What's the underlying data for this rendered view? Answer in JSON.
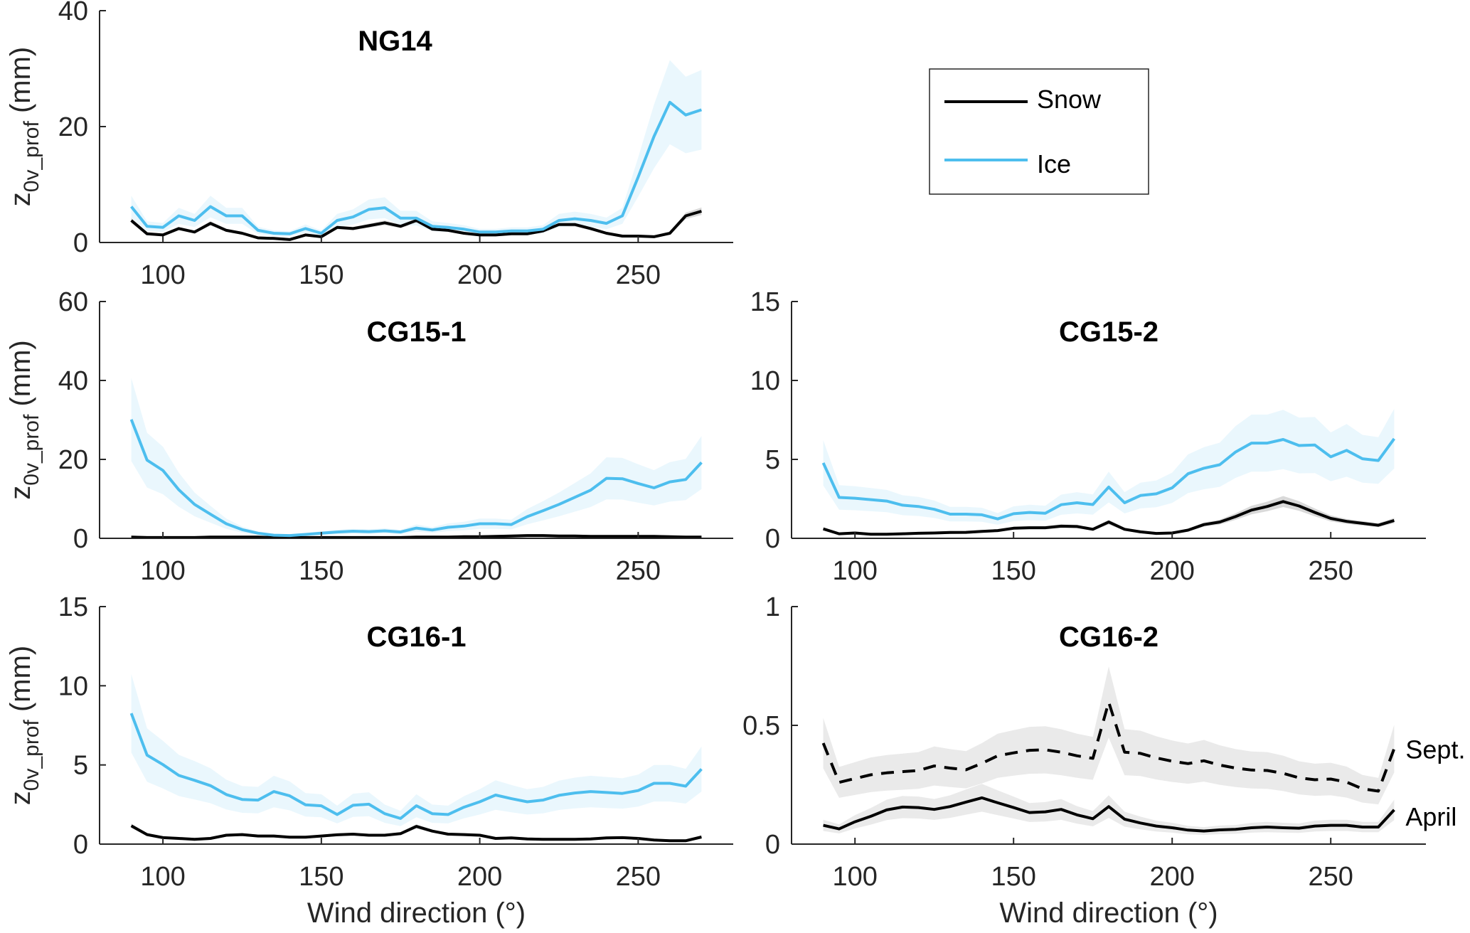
{
  "chart_data": [
    {
      "type": "line",
      "title": "NG14",
      "xlabel": "",
      "ylabel": "z0v_prof (mm)",
      "ylabel_main": "z",
      "ylabel_sub": "0v_prof",
      "ylabel_unit": " (mm)",
      "xlim": [
        80,
        280
      ],
      "ylim": [
        0,
        40
      ],
      "xticks": [
        100,
        150,
        200,
        250
      ],
      "yticks": [
        0,
        20,
        40
      ],
      "grid": false,
      "x": [
        90,
        95,
        100,
        105,
        110,
        115,
        120,
        125,
        130,
        135,
        140,
        145,
        150,
        155,
        160,
        165,
        170,
        175,
        180,
        185,
        190,
        195,
        200,
        205,
        210,
        215,
        220,
        225,
        230,
        235,
        240,
        245,
        250,
        255,
        260,
        265,
        270
      ],
      "series": [
        {
          "name": "Snow",
          "color": "#000000",
          "band_color": "#cccccc",
          "values": [
            3.8,
            1.5,
            1.3,
            2.4,
            1.8,
            3.3,
            2.1,
            1.6,
            0.8,
            0.7,
            0.5,
            1.3,
            1.0,
            2.6,
            2.4,
            2.9,
            3.4,
            2.8,
            3.8,
            2.3,
            2.1,
            1.6,
            1.3,
            1.3,
            1.5,
            1.5,
            2.0,
            3.1,
            3.1,
            2.4,
            1.6,
            1.1,
            1.1,
            1.0,
            1.6,
            4.6,
            5.4
          ],
          "band_rel": 0.12
        },
        {
          "name": "Ice",
          "color": "#4DBEEE",
          "band_color": "#e3f4fc",
          "values": [
            6.2,
            2.8,
            2.6,
            4.6,
            3.8,
            6.2,
            4.6,
            4.6,
            2.1,
            1.6,
            1.5,
            2.4,
            1.6,
            3.8,
            4.4,
            5.7,
            6.0,
            4.2,
            4.2,
            2.8,
            2.6,
            2.3,
            1.8,
            1.8,
            2.0,
            2.0,
            2.3,
            3.8,
            4.1,
            3.8,
            3.3,
            4.6,
            11.3,
            18.3,
            24.2,
            22.0,
            22.9
          ],
          "band_rel": 0.3
        }
      ]
    },
    {
      "type": "line",
      "title": "CG15-1",
      "xlabel": "",
      "ylabel": "z0v_prof (mm)",
      "ylabel_main": "z",
      "ylabel_sub": "0v_prof",
      "ylabel_unit": " (mm)",
      "xlim": [
        80,
        280
      ],
      "ylim": [
        0,
        60
      ],
      "xticks": [
        100,
        150,
        200,
        250
      ],
      "yticks": [
        0,
        20,
        40,
        60
      ],
      "grid": false,
      "x": [
        90,
        95,
        100,
        105,
        110,
        115,
        120,
        125,
        130,
        135,
        140,
        145,
        150,
        155,
        160,
        165,
        170,
        175,
        180,
        185,
        190,
        195,
        200,
        205,
        210,
        215,
        220,
        225,
        230,
        235,
        240,
        245,
        250,
        255,
        260,
        265,
        270
      ],
      "series": [
        {
          "name": "Snow",
          "color": "#000000",
          "band_color": "#cccccc",
          "values": [
            0.3,
            0.2,
            0.2,
            0.2,
            0.2,
            0.3,
            0.3,
            0.3,
            0.3,
            0.2,
            0.2,
            0.2,
            0.2,
            0.2,
            0.2,
            0.2,
            0.2,
            0.2,
            0.3,
            0.3,
            0.3,
            0.4,
            0.4,
            0.5,
            0.6,
            0.7,
            0.7,
            0.6,
            0.6,
            0.5,
            0.5,
            0.5,
            0.5,
            0.5,
            0.4,
            0.3,
            0.3
          ],
          "band_rel": 0.3
        },
        {
          "name": "Ice",
          "color": "#4DBEEE",
          "band_color": "#e3f4fc",
          "values": [
            30.1,
            19.8,
            17.2,
            12.3,
            8.6,
            6.1,
            3.7,
            2.2,
            1.3,
            0.8,
            0.7,
            1.0,
            1.3,
            1.6,
            1.8,
            1.7,
            1.9,
            1.6,
            2.6,
            2.1,
            2.8,
            3.1,
            3.7,
            3.7,
            3.5,
            5.5,
            7.0,
            8.6,
            10.4,
            12.2,
            15.2,
            15.1,
            13.9,
            12.8,
            14.3,
            14.9,
            19.2
          ],
          "band_rel": 0.35
        }
      ]
    },
    {
      "type": "line",
      "title": "CG15-2",
      "xlabel": "",
      "ylabel": "",
      "xlim": [
        80,
        280
      ],
      "ylim": [
        0,
        15
      ],
      "xticks": [
        100,
        150,
        200,
        250
      ],
      "yticks": [
        0,
        5,
        10,
        15
      ],
      "grid": false,
      "x": [
        90,
        95,
        100,
        105,
        110,
        115,
        120,
        125,
        130,
        135,
        140,
        145,
        150,
        155,
        160,
        165,
        170,
        175,
        180,
        185,
        190,
        195,
        200,
        205,
        210,
        215,
        220,
        225,
        230,
        235,
        240,
        245,
        250,
        255,
        260,
        265,
        270
      ],
      "series": [
        {
          "name": "Snow",
          "color": "#000000",
          "band_color": "#cccccc",
          "values": [
            0.6,
            0.29,
            0.34,
            0.26,
            0.26,
            0.29,
            0.32,
            0.34,
            0.37,
            0.38,
            0.44,
            0.49,
            0.64,
            0.67,
            0.67,
            0.77,
            0.75,
            0.57,
            1.03,
            0.57,
            0.41,
            0.31,
            0.34,
            0.52,
            0.87,
            1.03,
            1.38,
            1.79,
            2.02,
            2.33,
            2.05,
            1.64,
            1.26,
            1.07,
            0.95,
            0.83,
            1.13
          ],
          "band_rel": 0.15
        },
        {
          "name": "Ice",
          "color": "#4DBEEE",
          "band_color": "#e3f4fc",
          "values": [
            4.78,
            2.59,
            2.54,
            2.45,
            2.36,
            2.1,
            2.02,
            1.84,
            1.53,
            1.53,
            1.49,
            1.23,
            1.56,
            1.64,
            1.59,
            2.13,
            2.25,
            2.14,
            3.25,
            2.25,
            2.71,
            2.82,
            3.2,
            4.09,
            4.44,
            4.66,
            5.47,
            6.03,
            6.03,
            6.26,
            5.88,
            5.91,
            5.16,
            5.57,
            5.04,
            4.93,
            6.31
          ],
          "band_rel": 0.3
        }
      ]
    },
    {
      "type": "line",
      "title": "CG16-1",
      "xlabel": "Wind direction (°)",
      "ylabel": "z0v_prof (mm)",
      "ylabel_main": "z",
      "ylabel_sub": "0v_prof",
      "ylabel_unit": " (mm)",
      "xlim": [
        80,
        280
      ],
      "ylim": [
        0,
        15
      ],
      "xticks": [
        100,
        150,
        200,
        250
      ],
      "yticks": [
        0,
        5,
        10,
        15
      ],
      "grid": false,
      "x": [
        90,
        95,
        100,
        105,
        110,
        115,
        120,
        125,
        130,
        135,
        140,
        145,
        150,
        155,
        160,
        165,
        170,
        175,
        180,
        185,
        190,
        195,
        200,
        205,
        210,
        215,
        220,
        225,
        230,
        235,
        240,
        245,
        250,
        255,
        260,
        265,
        270
      ],
      "series": [
        {
          "name": "Snow",
          "color": "#000000",
          "band_color": "#cccccc",
          "values": [
            1.16,
            0.6,
            0.41,
            0.36,
            0.3,
            0.36,
            0.56,
            0.6,
            0.51,
            0.51,
            0.44,
            0.44,
            0.51,
            0.59,
            0.63,
            0.56,
            0.56,
            0.66,
            1.12,
            0.82,
            0.63,
            0.6,
            0.56,
            0.36,
            0.39,
            0.33,
            0.3,
            0.3,
            0.3,
            0.33,
            0.39,
            0.41,
            0.36,
            0.26,
            0.21,
            0.21,
            0.45
          ],
          "band_rel": 0.12
        },
        {
          "name": "Ice",
          "color": "#4DBEEE",
          "band_color": "#e3f4fc",
          "values": [
            8.26,
            5.62,
            5.02,
            4.34,
            4.03,
            3.69,
            3.13,
            2.82,
            2.78,
            3.32,
            3.05,
            2.48,
            2.42,
            1.87,
            2.45,
            2.52,
            1.92,
            1.62,
            2.42,
            1.92,
            1.87,
            2.33,
            2.67,
            3.1,
            2.87,
            2.67,
            2.78,
            3.08,
            3.23,
            3.32,
            3.26,
            3.2,
            3.38,
            3.84,
            3.84,
            3.66,
            4.74
          ],
          "band_rel": 0.3
        }
      ]
    },
    {
      "type": "line",
      "title": "CG16-2",
      "xlabel": "Wind direction (°)",
      "ylabel": "",
      "xlim": [
        80,
        280
      ],
      "ylim": [
        0,
        1
      ],
      "xticks": [
        100,
        150,
        200,
        250
      ],
      "yticks": [
        0,
        0.5,
        1
      ],
      "ytick_labels": [
        "0",
        "0.5",
        "1"
      ],
      "grid": false,
      "x": [
        90,
        95,
        100,
        105,
        110,
        115,
        120,
        125,
        130,
        135,
        140,
        145,
        150,
        155,
        160,
        165,
        170,
        175,
        180,
        185,
        190,
        195,
        200,
        205,
        210,
        215,
        220,
        225,
        230,
        235,
        240,
        245,
        250,
        255,
        260,
        265,
        270
      ],
      "series": [
        {
          "name": "Sept.",
          "color": "#000000",
          "dashed": true,
          "band_color": "#e3e3e3",
          "values": [
            0.425,
            0.26,
            0.276,
            0.292,
            0.3,
            0.305,
            0.31,
            0.329,
            0.32,
            0.313,
            0.34,
            0.372,
            0.384,
            0.395,
            0.397,
            0.387,
            0.372,
            0.361,
            0.598,
            0.387,
            0.382,
            0.363,
            0.349,
            0.339,
            0.351,
            0.333,
            0.32,
            0.312,
            0.31,
            0.298,
            0.279,
            0.271,
            0.274,
            0.261,
            0.233,
            0.223,
            0.402
          ],
          "band_rel": 0.25
        },
        {
          "name": "April",
          "color": "#000000",
          "dashed": false,
          "band_color": "#e3e3e3",
          "values": [
            0.079,
            0.064,
            0.094,
            0.117,
            0.144,
            0.156,
            0.154,
            0.146,
            0.158,
            0.177,
            0.195,
            0.174,
            0.154,
            0.133,
            0.136,
            0.146,
            0.123,
            0.107,
            0.158,
            0.105,
            0.089,
            0.076,
            0.069,
            0.059,
            0.055,
            0.06,
            0.062,
            0.069,
            0.072,
            0.069,
            0.067,
            0.076,
            0.079,
            0.079,
            0.072,
            0.072,
            0.144
          ],
          "band_rel": 0.3
        }
      ],
      "annotations": [
        "Sept.",
        "April"
      ]
    }
  ],
  "legend": {
    "placement": "top-right",
    "entries": [
      {
        "label": "Snow",
        "color": "#000000"
      },
      {
        "label": "Ice",
        "color": "#4DBEEE"
      }
    ]
  }
}
